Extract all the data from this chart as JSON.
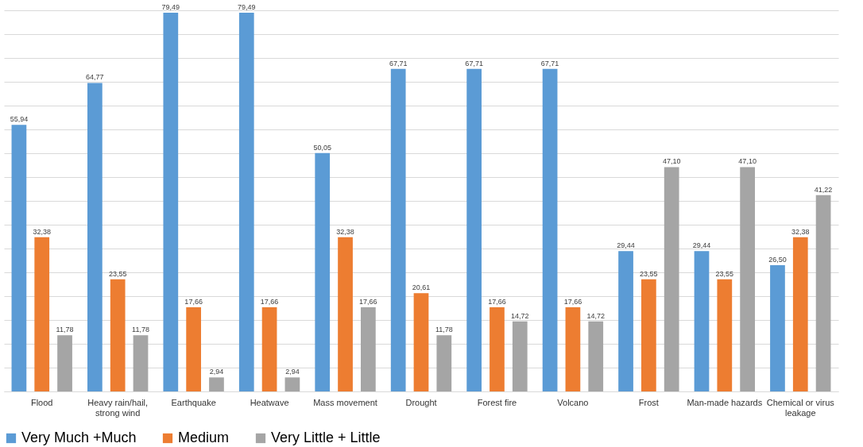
{
  "chart_data": {
    "type": "bar",
    "categories": [
      "Flood",
      "Heavy rain/hail, strong wind",
      "Earthquake",
      "Heatwave",
      "Mass movement",
      "Drought",
      "Forest fire",
      "Volcano",
      "Frost",
      "Man-made hazards",
      "Chemical or virus leakage"
    ],
    "series": [
      {
        "name": "Very Much +Much",
        "color": "#5b9bd5",
        "values": [
          55.94,
          64.77,
          79.49,
          79.49,
          50.05,
          67.71,
          67.71,
          67.71,
          29.44,
          29.44,
          26.5
        ],
        "value_labels": [
          "55,94",
          "64,77",
          "79,49",
          "79,49",
          "50,05",
          "67,71",
          "67,71",
          "67,71",
          "29,44",
          "29,44",
          "26,50"
        ]
      },
      {
        "name": "Medium",
        "color": "#ed7d31",
        "values": [
          32.38,
          23.55,
          17.66,
          17.66,
          32.38,
          20.61,
          17.66,
          17.66,
          23.55,
          23.55,
          32.38
        ],
        "value_labels": [
          "32,38",
          "23,55",
          "17,66",
          "17,66",
          "32,38",
          "20,61",
          "17,66",
          "17,66",
          "23,55",
          "23,55",
          "32,38"
        ]
      },
      {
        "name": "Very Little + Little",
        "color": "#a5a5a5",
        "values": [
          11.78,
          11.78,
          2.94,
          2.94,
          17.66,
          11.78,
          14.72,
          14.72,
          47.1,
          47.1,
          41.22
        ],
        "value_labels": [
          "11,78",
          "11,78",
          "2,94",
          "2,94",
          "17,66",
          "11,78",
          "14,72",
          "14,72",
          "47,10",
          "47,10",
          "41,22"
        ]
      }
    ],
    "tick_labels": "x",
    "grid": "y",
    "legend": "bottom"
  }
}
